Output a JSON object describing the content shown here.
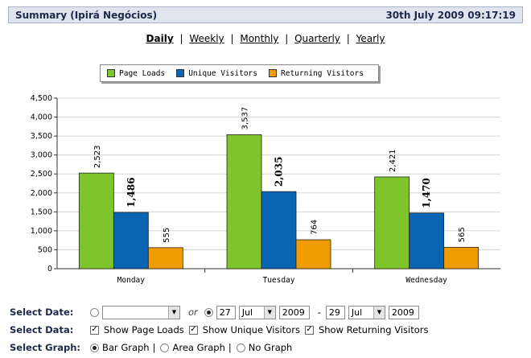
{
  "header": {
    "title": "Summary (Ipirá Negócios)",
    "datetime": "30th July 2009 09:17:19"
  },
  "periods": {
    "daily": "Daily",
    "weekly": "Weekly",
    "monthly": "Monthly",
    "quarterly": "Quarterly",
    "yearly": "Yearly",
    "separator": "|",
    "active": "Daily"
  },
  "legend": {
    "page_loads": "Page Loads",
    "unique_visitors": "Unique Visitors",
    "returning_visitors": "Returning Visitors"
  },
  "colors": {
    "page_loads": "#7fc42a",
    "unique_visitors": "#0a64b4",
    "returning_visitors": "#f09c00"
  },
  "chart_data": {
    "type": "bar",
    "categories": [
      "Monday",
      "Tuesday",
      "Wednesday"
    ],
    "series": [
      {
        "name": "Page Loads",
        "values": [
          2523,
          3537,
          2421
        ],
        "labels": [
          "2,523",
          "3,537",
          "2,421"
        ]
      },
      {
        "name": "Unique Visitors",
        "values": [
          1486,
          2035,
          1470
        ],
        "labels": [
          "1,486",
          "2,035",
          "1,470"
        ]
      },
      {
        "name": "Returning Visitors",
        "values": [
          555,
          764,
          565
        ],
        "labels": [
          "555",
          "764",
          "565"
        ]
      }
    ],
    "yticks": [
      "0",
      "500",
      "1,000",
      "1,500",
      "2,000",
      "2,500",
      "3,000",
      "3,500",
      "4,000",
      "4,500"
    ],
    "ylim": [
      0,
      4500
    ],
    "grid": true,
    "legend_position": "top"
  },
  "controls": {
    "select_date": {
      "label": "Select Date:",
      "or_text": "or",
      "preset_value": "",
      "from_day": "27",
      "from_month": "Jul",
      "from_year": "2009",
      "dash": "-",
      "to_day": "29",
      "to_month": "Jul",
      "to_year": "2009"
    },
    "select_data": {
      "label": "Select Data:",
      "page_loads": "Show Page Loads",
      "unique_visitors": "Show Unique Visitors",
      "returning_visitors": "Show Returning Visitors"
    },
    "select_graph": {
      "label": "Select Graph:",
      "bar": "Bar Graph",
      "area": "Area Graph",
      "none": "No Graph",
      "separator": "|"
    }
  }
}
